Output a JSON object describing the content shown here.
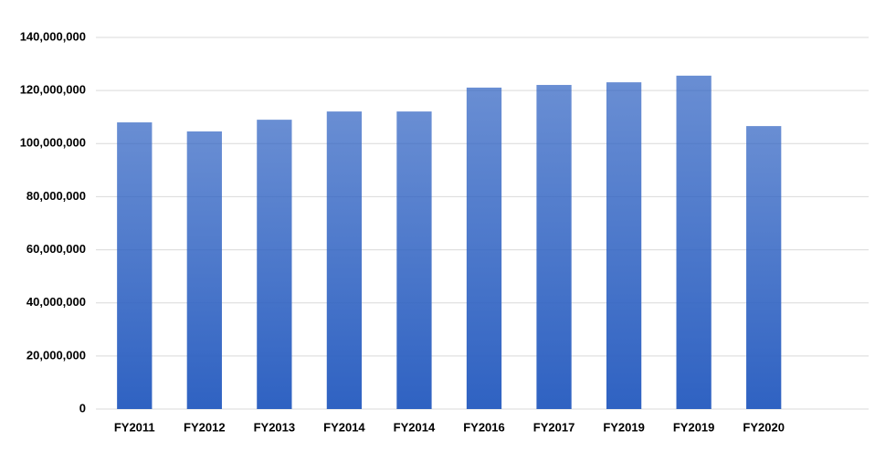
{
  "chart_data": {
    "type": "bar",
    "categories": [
      "FY2011",
      "FY2012",
      "FY2013",
      "FY2014",
      "FY2014",
      "FY2016",
      "FY2017",
      "FY2019",
      "FY2019",
      "FY2020",
      null
    ],
    "values": [
      108000000,
      104600000,
      109000000,
      112100000,
      112100000,
      121100000,
      122100000,
      123100000,
      125600000,
      106600000,
      null
    ],
    "color": "#2f62c2",
    "ylim": [
      0,
      140000000
    ],
    "yticks": [
      0,
      {
        "value": 20000000,
        "label": "20,000,000"
      },
      {
        "value": 40000000,
        "label": "40,000,000"
      },
      {
        "value": 60000000,
        "label": "60,000,000"
      },
      {
        "value": 80000000,
        "label": "80,000,000"
      },
      {
        "value": 100000000,
        "label": "100,000,000"
      },
      {
        "value": 120000000,
        "label": "120,000,000"
      },
      {
        "value": 140000000,
        "label": "140,000,000"
      }
    ],
    "grid": true
  }
}
